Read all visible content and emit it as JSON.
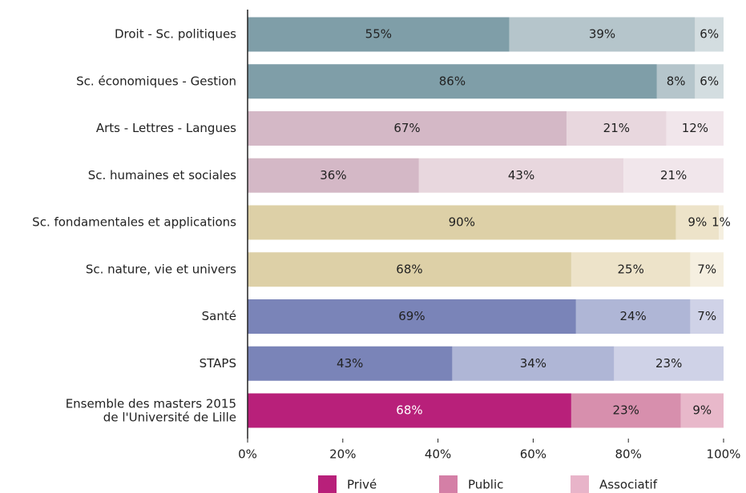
{
  "chart_data": {
    "type": "stacked_bar_horizontal",
    "categories": [
      "Droit - Sc. politiques",
      "Sc. économiques - Gestion",
      "Arts - Lettres - Langues",
      "Sc. humaines et sociales",
      "Sc. fondamentales et applications",
      "Sc. nature, vie et univers",
      "Santé",
      "STAPS",
      "Ensemble des masters 2015\nde l'Université de Lille"
    ],
    "series": [
      {
        "name": "Privé",
        "color": "#b8207a",
        "values": [
          55,
          86,
          67,
          36,
          90,
          68,
          69,
          43,
          68
        ],
        "value_labels": [
          "55%",
          "86%",
          "67%",
          "36%",
          "90%",
          "68%",
          "69%",
          "43%",
          "68%"
        ]
      },
      {
        "name": "Public",
        "color": "#d47fa6",
        "values": [
          39,
          8,
          21,
          43,
          9,
          25,
          24,
          34,
          23
        ],
        "value_labels": [
          "39%",
          "8%",
          "21%",
          "43%",
          "9%",
          "25%",
          "24%",
          "34%",
          "23%"
        ]
      },
      {
        "name": "Associatif",
        "color": "#e8b4c9",
        "values": [
          6,
          6,
          12,
          21,
          1,
          7,
          7,
          23,
          9
        ],
        "value_labels": [
          "6%",
          "6%",
          "12%",
          "21%",
          "1%",
          "7%",
          "7%",
          "23%",
          "9%"
        ]
      }
    ],
    "category_colors": [
      [
        "#7f9ea8",
        "#b5c5cb",
        "#d3dde0"
      ],
      [
        "#7f9ea8",
        "#b5c5cb",
        "#d3dde0"
      ],
      [
        "#d4b8c6",
        "#e8d7de",
        "#f1e6eb"
      ],
      [
        "#d4b8c6",
        "#e8d7de",
        "#f1e6eb"
      ],
      [
        "#ddd0a7",
        "#ede3c9",
        "#f5efe0"
      ],
      [
        "#ddd0a7",
        "#ede3c9",
        "#f5efe0"
      ],
      [
        "#7a84b8",
        "#afb6d6",
        "#cfd2e7"
      ],
      [
        "#7a84b8",
        "#afb6d6",
        "#cfd2e7"
      ],
      [
        "#b8207a",
        "#d78fad",
        "#e8b8ca"
      ]
    ],
    "xlim": [
      0,
      100
    ],
    "xticks": [
      {
        "value": 0,
        "label": "0%"
      },
      {
        "value": 20,
        "label": "20%"
      },
      {
        "value": 40,
        "label": "40%"
      },
      {
        "value": 60,
        "label": "60%"
      },
      {
        "value": 80,
        "label": "80%"
      },
      {
        "value": 100,
        "label": "100%"
      }
    ],
    "legend": "bottom"
  }
}
